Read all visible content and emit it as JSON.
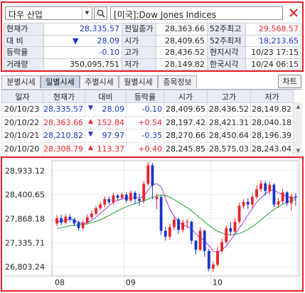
{
  "search": {
    "stock_name": "다우 산업",
    "index_label": "[미국]:Dow Jones Indices"
  },
  "info": {
    "current_label": "현재가",
    "current_value": "28,335.57",
    "change_label": "대 비",
    "change_arrow": "▼",
    "change_value": "28.09",
    "rate_label": "등락율",
    "rate_value": "-0.10",
    "volume_label": "거래량",
    "volume_value": "350,095,751",
    "prev_close_label": "전일종가",
    "prev_close_value": "28,363.66",
    "open_label": "시가",
    "open_value": "28,409.65",
    "high_label": "고가",
    "high_value": "28,436.52",
    "low_label": "저가",
    "low_value": "28,149.82",
    "wk52_high_label": "52주최고",
    "wk52_high_value": "29,568.57",
    "wk52_low_label": "52주최저",
    "wk52_low_value": "18,213.65",
    "local_time_label": "현지시각",
    "local_time_value": "10/23 17:15",
    "kr_time_label": "한국시각",
    "kr_time_value": "10/24 06:15"
  },
  "tabs": [
    "분별시세",
    "일별시세",
    "주별시세",
    "월별시세",
    "종목정보"
  ],
  "active_tab": 1,
  "chart_button": "차트",
  "daily": {
    "headers": [
      "일자",
      "현재가",
      "대비",
      "등락율",
      "시가",
      "고가",
      "저가"
    ],
    "rows": [
      {
        "date": "20/10/23",
        "close": "28,335.57",
        "arrow": "▼",
        "change": "28.09",
        "rate": "-0.10",
        "open": "28,409.65",
        "high": "28,436.52",
        "low": "28,149.82",
        "dir": "down"
      },
      {
        "date": "20/10/22",
        "close": "28,363.66",
        "arrow": "▲",
        "change": "152.84",
        "rate": "+0.54",
        "open": "28,197.42",
        "high": "28,421.31",
        "low": "28,040.18",
        "dir": "up"
      },
      {
        "date": "20/10/21",
        "close": "28,210.82",
        "arrow": "▼",
        "change": "97.97",
        "rate": "-0.35",
        "open": "28,270.66",
        "high": "28,450.64",
        "low": "28,196.39",
        "dir": "down"
      },
      {
        "date": "20/10/20",
        "close": "28,308.79",
        "arrow": "▲",
        "change": "113.37",
        "rate": "+0.40",
        "open": "28,245.85",
        "high": "28,575.03",
        "low": "28,243.04",
        "dir": "up"
      }
    ]
  },
  "colors": {
    "up": "#e8222a",
    "down": "#1634cc",
    "ma_short": "#9a3ce0",
    "ma_long": "#20a232",
    "highlight": "#e8222a"
  },
  "chart_data": {
    "type": "candlestick",
    "y_ticks": [
      "28,933.12",
      "28,400.65",
      "27,868.18",
      "27,335.71",
      "26,803.24"
    ],
    "x_ticks": [
      "08",
      "09",
      "10"
    ],
    "ylim": [
      26600,
      29150
    ],
    "candles": [
      {
        "o": 27760,
        "c": 27880,
        "h": 27950,
        "l": 27700
      },
      {
        "o": 27880,
        "c": 27780,
        "h": 27960,
        "l": 27720
      },
      {
        "o": 27780,
        "c": 27910,
        "h": 27980,
        "l": 27740
      },
      {
        "o": 27910,
        "c": 27850,
        "h": 27970,
        "l": 27790
      },
      {
        "o": 27850,
        "c": 27760,
        "h": 27890,
        "l": 27700
      },
      {
        "o": 27780,
        "c": 27660,
        "h": 27820,
        "l": 27600
      },
      {
        "o": 27660,
        "c": 27780,
        "h": 27830,
        "l": 27610
      },
      {
        "o": 27780,
        "c": 27900,
        "h": 27960,
        "l": 27740
      },
      {
        "o": 27900,
        "c": 27980,
        "h": 28050,
        "l": 27860
      },
      {
        "o": 27980,
        "c": 28100,
        "h": 28150,
        "l": 27940
      },
      {
        "o": 28100,
        "c": 28180,
        "h": 28240,
        "l": 28050
      },
      {
        "o": 28180,
        "c": 28300,
        "h": 28360,
        "l": 28120
      },
      {
        "o": 28300,
        "c": 28230,
        "h": 28360,
        "l": 28180
      },
      {
        "o": 28230,
        "c": 28380,
        "h": 28440,
        "l": 28180
      },
      {
        "o": 28380,
        "c": 28330,
        "h": 28420,
        "l": 28270
      },
      {
        "o": 28330,
        "c": 28400,
        "h": 28440,
        "l": 28280
      },
      {
        "o": 28400,
        "c": 28270,
        "h": 28460,
        "l": 28220
      },
      {
        "o": 28270,
        "c": 28440,
        "h": 28500,
        "l": 28230
      },
      {
        "o": 28440,
        "c": 28300,
        "h": 28480,
        "l": 28190
      },
      {
        "o": 28300,
        "c": 28260,
        "h": 28430,
        "l": 28150
      },
      {
        "o": 28260,
        "c": 28640,
        "h": 28700,
        "l": 28200
      },
      {
        "o": 28640,
        "c": 29050,
        "h": 29120,
        "l": 28600
      },
      {
        "o": 29050,
        "c": 28600,
        "h": 29100,
        "l": 28300
      },
      {
        "o": 28300,
        "c": 28350,
        "h": 28420,
        "l": 28080
      },
      {
        "o": 28350,
        "c": 27600,
        "h": 28380,
        "l": 27500
      },
      {
        "o": 27600,
        "c": 27470,
        "h": 27680,
        "l": 27380
      },
      {
        "o": 27470,
        "c": 27680,
        "h": 27750,
        "l": 27400
      },
      {
        "o": 27680,
        "c": 27850,
        "h": 27900,
        "l": 27620
      },
      {
        "o": 27850,
        "c": 27620,
        "h": 27900,
        "l": 27520
      },
      {
        "o": 27620,
        "c": 27780,
        "h": 27840,
        "l": 27560
      },
      {
        "o": 27780,
        "c": 27800,
        "h": 27860,
        "l": 27650
      },
      {
        "o": 27800,
        "c": 27380,
        "h": 27820,
        "l": 27300
      },
      {
        "o": 27380,
        "c": 27180,
        "h": 27400,
        "l": 27080
      },
      {
        "o": 27180,
        "c": 27600,
        "h": 27680,
        "l": 27150
      },
      {
        "o": 27600,
        "c": 27150,
        "h": 27620,
        "l": 27020
      },
      {
        "o": 27150,
        "c": 26760,
        "h": 27200,
        "l": 26700
      },
      {
        "o": 26760,
        "c": 26850,
        "h": 26920,
        "l": 26690
      },
      {
        "o": 26850,
        "c": 27150,
        "h": 27250,
        "l": 26800
      },
      {
        "o": 27150,
        "c": 27350,
        "h": 27430,
        "l": 27100
      },
      {
        "o": 27350,
        "c": 27660,
        "h": 27720,
        "l": 27300
      },
      {
        "o": 27660,
        "c": 27580,
        "h": 27800,
        "l": 27500
      },
      {
        "o": 27580,
        "c": 27800,
        "h": 27880,
        "l": 27530
      },
      {
        "o": 27800,
        "c": 28150,
        "h": 28220,
        "l": 27760
      },
      {
        "o": 28150,
        "c": 28240,
        "h": 28300,
        "l": 28080
      },
      {
        "o": 28240,
        "c": 28180,
        "h": 28320,
        "l": 28080
      },
      {
        "o": 28180,
        "c": 28350,
        "h": 28420,
        "l": 28100
      },
      {
        "o": 28350,
        "c": 28520,
        "h": 28600,
        "l": 28300
      },
      {
        "o": 28520,
        "c": 28650,
        "h": 28720,
        "l": 28460
      },
      {
        "o": 28650,
        "c": 28480,
        "h": 28700,
        "l": 28380
      },
      {
        "o": 28480,
        "c": 28620,
        "h": 28680,
        "l": 28400
      },
      {
        "o": 28620,
        "c": 28180,
        "h": 28650,
        "l": 28120
      },
      {
        "o": 28180,
        "c": 28250,
        "h": 28320,
        "l": 28100
      },
      {
        "o": 28250,
        "c": 28450,
        "h": 28520,
        "l": 28200
      },
      {
        "o": 28450,
        "c": 28210,
        "h": 28480,
        "l": 28150
      },
      {
        "o": 28210,
        "c": 28360,
        "h": 28420,
        "l": 28040
      },
      {
        "o": 28360,
        "c": 28340,
        "h": 28440,
        "l": 28150
      }
    ],
    "ma_short": [
      27800,
      27820,
      27830,
      27860,
      27830,
      27790,
      27760,
      27780,
      27830,
      27900,
      27980,
      28070,
      28150,
      28230,
      28270,
      28310,
      28320,
      28330,
      28340,
      28320,
      28360,
      28500,
      28620,
      28640,
      28580,
      28320,
      28080,
      27920,
      27800,
      27720,
      27700,
      27640,
      27530,
      27450,
      27380,
      27270,
      27150,
      27120,
      27180,
      27260,
      27390,
      27520,
      27660,
      27800,
      27950,
      28090,
      28230,
      28330,
      28420,
      28480,
      28500,
      28440,
      28400,
      28360,
      28320,
      28330
    ],
    "ma_long": [
      27650,
      27670,
      27690,
      27710,
      27720,
      27730,
      27740,
      27750,
      27780,
      27810,
      27840,
      27890,
      27940,
      27990,
      28040,
      28090,
      28130,
      28170,
      28200,
      28230,
      28260,
      28300,
      28340,
      28370,
      28390,
      28380,
      28340,
      28290,
      28230,
      28170,
      28110,
      28040,
      27960,
      27880,
      27800,
      27720,
      27650,
      27590,
      27550,
      27520,
      27510,
      27520,
      27540,
      27580,
      27630,
      27690,
      27760,
      27840,
      27920,
      28000,
      28070,
      28130,
      28190,
      28230,
      28270,
      28290
    ]
  }
}
